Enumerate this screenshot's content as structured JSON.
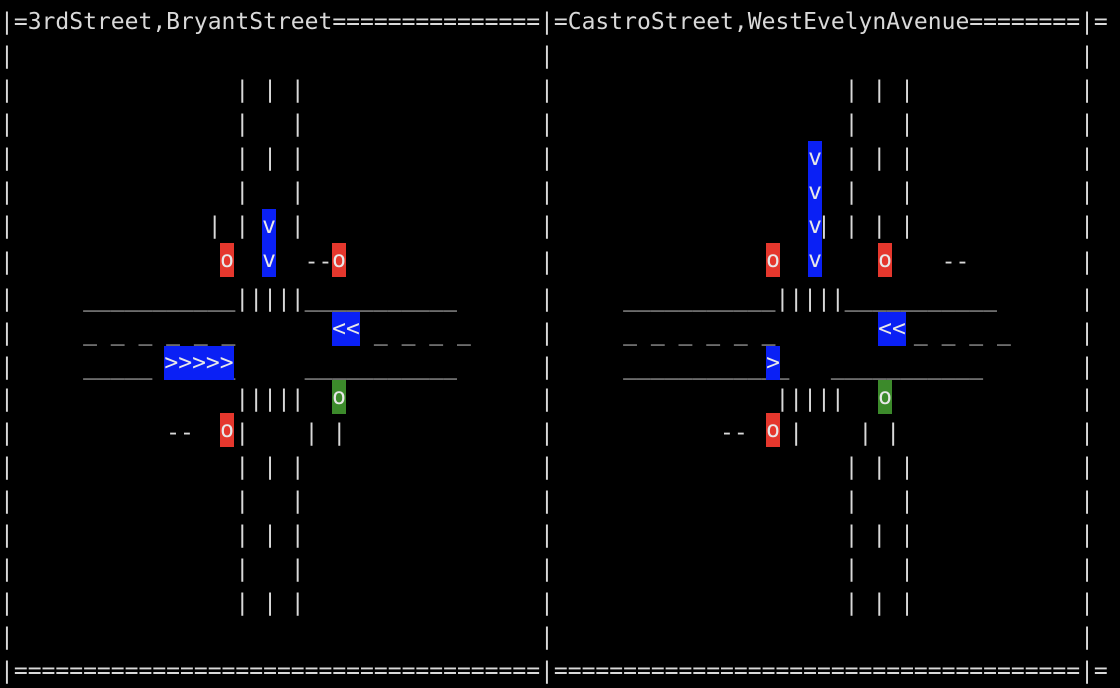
{
  "accent_colors": {
    "signal_red": "#e5372d",
    "vehicle_blue": "#0a20f5",
    "signal_green": "#3c8a2b"
  },
  "lines": [
    "|=3rdStreet,BryantStreet===============|=CastroStreet,WestEvelynAvenue========|=",
    "|                                      |                                      |",
    "|                | | |                 |                     | | |            |",
    "|                |   |                 |                     |   |            |",
    "|                | | |                 |                     | | |            |",
    "|                |   |                 |                     |   |            |",
    "|              | | | |                 |                   | | | |            |",
    "|                     --               |                            --        |",
    "|     ___________|||||___________      |     ___________|||||___________      |",
    "|     _ _ _ _ _ _        _ _ _ _ _     |     _ _ _ _ _ _        _ _ _ _ _     |",
    "|     _____     _     ___________      |     ____________   ___________       |",
    "|                |||||                 |                |||||                 |",
    "|           --   |    | |              |            --   |    | |             |",
    "|                | | |                 |                     | | |            |",
    "|                |   |                 |                     |   |            |",
    "|                | | |                 |                     | | |            |",
    "|                |   |                 |                     |   |            |",
    "|                | | |                 |                     | | |            |",
    "|                                      |                                      |",
    "|======================================|======================================|="
  ],
  "signals": {
    "left": {
      "north": "o",
      "east": "o",
      "west": "o",
      "south": "o"
    },
    "right": {
      "north": "o",
      "east": "o",
      "west": "o",
      "south": "o"
    }
  },
  "vehicles": {
    "left": {
      "southbound_1": "v",
      "southbound_2": "v",
      "westbound": "<<",
      "eastbound": ">>>>>"
    },
    "right": {
      "southbound_1": "v",
      "southbound_2": "v",
      "southbound_3": "v",
      "southbound_4": "v",
      "westbound": "<<",
      "eastbound": ">"
    }
  }
}
